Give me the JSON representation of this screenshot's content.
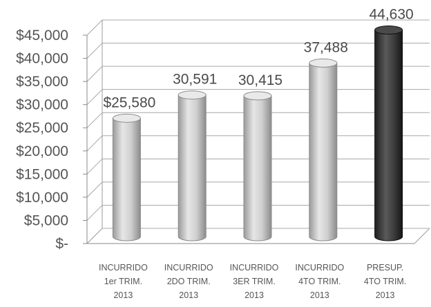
{
  "chart_data": {
    "type": "bar",
    "style": "3d-cylinder",
    "categories": [
      [
        "INCURRIDO",
        "1er TRIM.",
        "2013"
      ],
      [
        "INCURRIDO",
        "2DO TRIM.",
        "2013"
      ],
      [
        "INCURRIDO",
        "3ER TRIM.",
        "2013"
      ],
      [
        "INCURRIDO",
        "4TO TRIM.",
        "2013"
      ],
      [
        "PRESUP.",
        "4TO TRIM.",
        "2013"
      ]
    ],
    "values": [
      25580,
      30591,
      30415,
      37488,
      44630
    ],
    "data_labels": [
      "$25,580",
      "30,591",
      "30,415",
      "37,488",
      "44,630"
    ],
    "bar_colors": [
      "#bdbdbd",
      "#bdbdbd",
      "#bdbdbd",
      "#bdbdbd",
      "#3a3a3a"
    ],
    "y_ticks": [
      0,
      5000,
      10000,
      15000,
      20000,
      25000,
      30000,
      35000,
      40000,
      45000
    ],
    "y_tick_labels": [
      "$-",
      "$5,000",
      "$10,000",
      "$15,000",
      "$20,000",
      "$25,000",
      "$30,000",
      "$35,000",
      "$40,000",
      "$45,000"
    ],
    "ylim": [
      0,
      45000
    ],
    "grid": true,
    "legend": "none",
    "title": "",
    "xlabel": "",
    "ylabel": ""
  }
}
